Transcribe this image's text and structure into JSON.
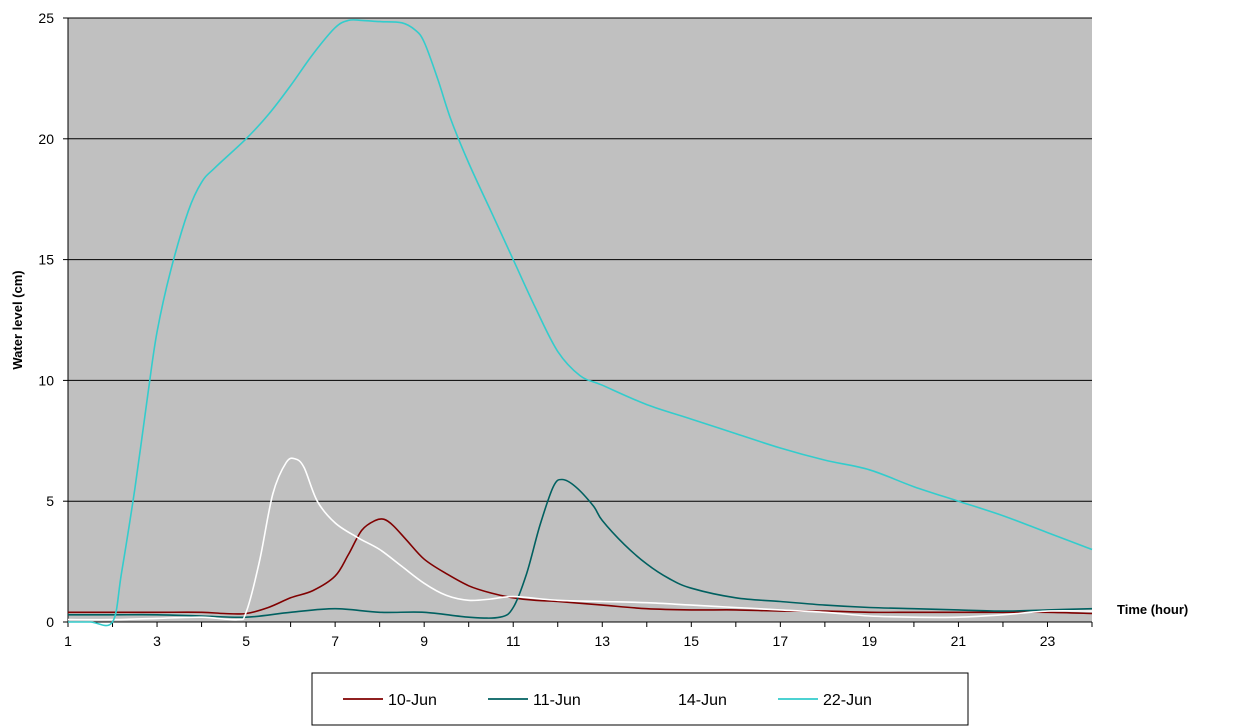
{
  "chart_data": {
    "type": "line",
    "title": "",
    "xlabel": "Time (hour)",
    "ylabel": "Water level (cm)",
    "xlim": [
      1,
      24
    ],
    "ylim": [
      0,
      25
    ],
    "x_ticks": [
      "1",
      "3",
      "5",
      "7",
      "9",
      "11",
      "13",
      "15",
      "17",
      "19",
      "21",
      "23"
    ],
    "y_ticks": [
      "0",
      "5",
      "10",
      "15",
      "20",
      "25"
    ],
    "grid": "horizontal",
    "plot_background": "#c0c0c0",
    "legend_position": "bottom",
    "series": [
      {
        "name": "10-Jun",
        "color": "#800000",
        "x": [
          1,
          2,
          3,
          4,
          4.5,
          5,
          5.5,
          6,
          6.5,
          7,
          7.3,
          7.6,
          7.9,
          8.1,
          8.3,
          8.6,
          9,
          9.5,
          10,
          10.5,
          11,
          11.5,
          12,
          13,
          14,
          15,
          16,
          17,
          18,
          19,
          20,
          21,
          22,
          23,
          24
        ],
        "y": [
          0.4,
          0.4,
          0.4,
          0.4,
          0.35,
          0.35,
          0.6,
          1.0,
          1.3,
          1.9,
          2.8,
          3.8,
          4.2,
          4.25,
          4.0,
          3.4,
          2.6,
          2.0,
          1.5,
          1.2,
          1.0,
          0.9,
          0.85,
          0.7,
          0.55,
          0.5,
          0.5,
          0.45,
          0.45,
          0.4,
          0.4,
          0.4,
          0.4,
          0.4,
          0.35
        ]
      },
      {
        "name": "11-Jun",
        "color": "#006060",
        "x": [
          1,
          2,
          3,
          4,
          5,
          6,
          7,
          8,
          9,
          10,
          10.7,
          11,
          11.3,
          11.6,
          11.9,
          12.1,
          12.4,
          12.8,
          13,
          13.5,
          14,
          14.5,
          15,
          16,
          17,
          18,
          19,
          20,
          21,
          22,
          23,
          24
        ],
        "y": [
          0.3,
          0.3,
          0.3,
          0.25,
          0.2,
          0.4,
          0.55,
          0.4,
          0.4,
          0.2,
          0.2,
          0.6,
          2.0,
          4.0,
          5.6,
          5.9,
          5.6,
          4.8,
          4.2,
          3.2,
          2.4,
          1.8,
          1.4,
          1.0,
          0.85,
          0.7,
          0.6,
          0.55,
          0.5,
          0.45,
          0.5,
          0.55
        ]
      },
      {
        "name": "14-Jun",
        "color": "#ffffff",
        "x": [
          1,
          2,
          3,
          4,
          4.8,
          5,
          5.3,
          5.6,
          5.9,
          6.1,
          6.3,
          6.6,
          7,
          7.5,
          8,
          8.5,
          9,
          9.5,
          10,
          10.5,
          11,
          12,
          13,
          14,
          15,
          16,
          17,
          18,
          19,
          20,
          21,
          22,
          23,
          24
        ],
        "y": [
          0.1,
          0.1,
          0.15,
          0.2,
          0.1,
          0.4,
          2.5,
          5.3,
          6.6,
          6.75,
          6.4,
          5.0,
          4.1,
          3.5,
          3.0,
          2.3,
          1.6,
          1.1,
          0.9,
          0.95,
          1.05,
          0.9,
          0.85,
          0.8,
          0.7,
          0.6,
          0.5,
          0.4,
          0.25,
          0.2,
          0.2,
          0.3,
          0.45,
          0.45
        ]
      },
      {
        "name": "22-Jun",
        "color": "#33cccc",
        "x": [
          1,
          1.5,
          2.0,
          2.2,
          2.5,
          2.8,
          3.0,
          3.3,
          3.7,
          4.0,
          4.3,
          5.0,
          5.5,
          6.0,
          6.5,
          7.0,
          7.3,
          7.6,
          8.0,
          8.5,
          8.8,
          9.0,
          9.3,
          9.6,
          10.0,
          10.5,
          11.0,
          11.5,
          12.0,
          12.5,
          13.0,
          14.0,
          15.0,
          16.0,
          17.0,
          18.0,
          19.0,
          20.0,
          21.0,
          22.0,
          23.0,
          24.0
        ],
        "y": [
          0.0,
          0.0,
          0.0,
          2.0,
          5.5,
          9.5,
          12.0,
          14.5,
          17.0,
          18.2,
          18.8,
          20.0,
          21.0,
          22.2,
          23.5,
          24.6,
          24.9,
          24.9,
          24.85,
          24.8,
          24.5,
          24.0,
          22.5,
          20.8,
          19.0,
          17.0,
          15.0,
          13.0,
          11.2,
          10.2,
          9.8,
          9.0,
          8.4,
          7.8,
          7.2,
          6.7,
          6.3,
          5.6,
          5.0,
          4.4,
          3.7,
          3.0
        ]
      }
    ]
  }
}
